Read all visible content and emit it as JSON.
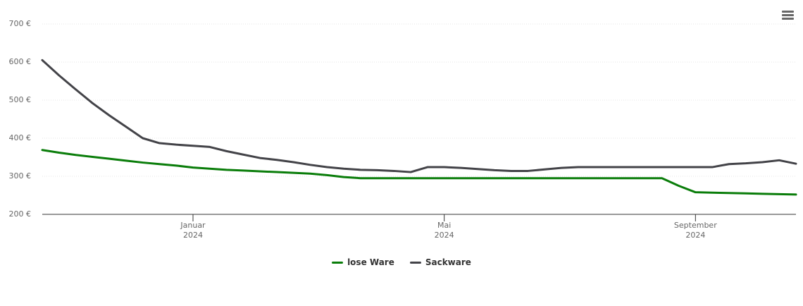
{
  "chart_data": {
    "type": "line",
    "categories": [
      null,
      null,
      null,
      null,
      null,
      null,
      null,
      null,
      null,
      "Januar\n2024",
      null,
      null,
      null,
      null,
      null,
      null,
      null,
      null,
      null,
      null,
      null,
      null,
      null,
      null,
      "Mai\n2024",
      null,
      null,
      null,
      null,
      null,
      null,
      null,
      null,
      null,
      null,
      null,
      null,
      null,
      null,
      "September\n2024",
      null,
      null,
      null,
      null,
      null,
      null
    ],
    "series": [
      {
        "name": "lose Ware",
        "color": "#0a7d0a",
        "values": [
          369,
          362,
          356,
          351,
          346,
          341,
          336,
          332,
          328,
          323,
          320,
          317,
          315,
          313,
          311,
          309,
          307,
          303,
          298,
          295,
          295,
          295,
          295,
          295,
          295,
          295,
          295,
          295,
          295,
          295,
          295,
          295,
          295,
          295,
          295,
          295,
          295,
          295,
          275,
          258,
          257,
          256,
          255,
          254,
          253,
          252
        ]
      },
      {
        "name": "Sackware",
        "color": "#434348",
        "values": [
          605,
          565,
          528,
          492,
          460,
          430,
          400,
          387,
          383,
          380,
          377,
          366,
          357,
          348,
          343,
          337,
          330,
          324,
          320,
          317,
          316,
          314,
          311,
          324,
          324,
          322,
          319,
          316,
          314,
          314,
          318,
          322,
          324,
          324,
          324,
          324,
          324,
          324,
          324,
          324,
          324,
          332,
          334,
          337,
          342,
          333
        ]
      }
    ],
    "ylim": [
      200,
      700
    ],
    "yticks": [
      {
        "value": 200,
        "label": "200 €"
      },
      {
        "value": 300,
        "label": "300 €"
      },
      {
        "value": 400,
        "label": "400 €"
      },
      {
        "value": 500,
        "label": "500 €"
      },
      {
        "value": 600,
        "label": "600 €"
      },
      {
        "value": 700,
        "label": "700 €"
      }
    ],
    "grid": true
  }
}
